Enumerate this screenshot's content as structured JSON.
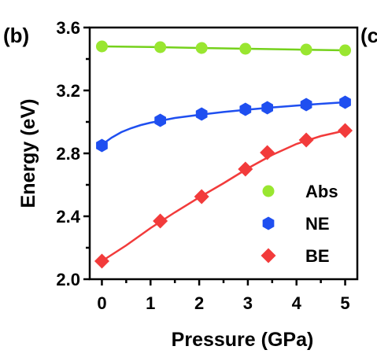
{
  "panel_label": "(b)",
  "next_panel_label_partial": "(c",
  "chart_data": {
    "type": "scatter",
    "xlabel": "Pressure (GPa)",
    "ylabel": "Energy (eV)",
    "xlim": [
      -0.25,
      5.25
    ],
    "ylim": [
      2.0,
      3.6
    ],
    "x_ticks": [
      0,
      1,
      2,
      3,
      4,
      5
    ],
    "y_ticks": [
      2.0,
      2.4,
      2.8,
      3.2,
      3.6
    ],
    "y_tick_labels": [
      "2.0",
      "2.4",
      "2.8",
      "3.2",
      "3.6"
    ],
    "legend_position": "bottom-right",
    "series": [
      {
        "name": "Abs",
        "marker": "circle",
        "color": "#99e630",
        "line_color": "#75d11c",
        "x": [
          0,
          1.2,
          2.05,
          2.95,
          4.2,
          5.0
        ],
        "y": [
          3.48,
          3.475,
          3.47,
          3.465,
          3.46,
          3.455
        ],
        "fit": [
          [
            0,
            3.48
          ],
          [
            1,
            3.476
          ],
          [
            2,
            3.47
          ],
          [
            3,
            3.465
          ],
          [
            4,
            3.46
          ],
          [
            5,
            3.455
          ]
        ]
      },
      {
        "name": "NE",
        "marker": "hexagon",
        "color": "#1f4ff0",
        "line_color": "#1f4ff0",
        "x": [
          0,
          1.2,
          2.05,
          2.95,
          3.4,
          4.2,
          5.0
        ],
        "y": [
          2.85,
          3.01,
          3.05,
          3.08,
          3.09,
          3.11,
          3.125
        ],
        "fit": [
          [
            0,
            2.855
          ],
          [
            0.2,
            2.9
          ],
          [
            0.4,
            2.935
          ],
          [
            0.6,
            2.96
          ],
          [
            0.8,
            2.98
          ],
          [
            1.0,
            2.995
          ],
          [
            1.5,
            3.025
          ],
          [
            2.0,
            3.045
          ],
          [
            2.5,
            3.063
          ],
          [
            3.0,
            3.078
          ],
          [
            3.5,
            3.092
          ],
          [
            4.0,
            3.104
          ],
          [
            4.5,
            3.115
          ],
          [
            5.0,
            3.125
          ]
        ]
      },
      {
        "name": "BE",
        "marker": "diamond",
        "color": "#f23b3b",
        "line_color": "#f23b3b",
        "x": [
          0,
          1.2,
          2.05,
          2.95,
          3.4,
          4.2,
          5.0
        ],
        "y": [
          2.115,
          2.37,
          2.525,
          2.7,
          2.805,
          2.885,
          2.945
        ],
        "fit": [
          [
            0,
            2.115
          ],
          [
            0.5,
            2.215
          ],
          [
            1.0,
            2.325
          ],
          [
            1.5,
            2.425
          ],
          [
            2.0,
            2.52
          ],
          [
            2.5,
            2.61
          ],
          [
            3.0,
            2.705
          ],
          [
            3.5,
            2.79
          ],
          [
            4.0,
            2.86
          ],
          [
            4.5,
            2.91
          ],
          [
            5.0,
            2.945
          ]
        ]
      }
    ]
  }
}
